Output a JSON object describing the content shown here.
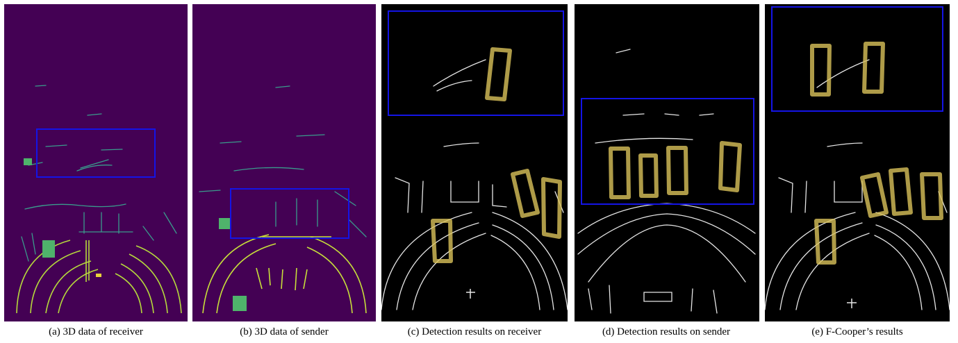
{
  "figure": {
    "panels": [
      {
        "id": "a",
        "caption": "(a) 3D data of receiver",
        "style": "viridis"
      },
      {
        "id": "b",
        "caption": "(b) 3D data of sender",
        "style": "viridis"
      },
      {
        "id": "c",
        "caption": "(c) Detection results on receiver",
        "style": "detection"
      },
      {
        "id": "d",
        "caption": "(d) Detection results on sender",
        "style": "detection"
      },
      {
        "id": "e",
        "caption": "(e) F-Cooper’s results",
        "style": "detection"
      }
    ],
    "colors": {
      "viridis_background": "#440154",
      "lidar_points_teal": "#3a9c8c",
      "lidar_points_yellow": "#c8e03a",
      "detection_background": "#000000",
      "lidar_points_white": "#e6e6e6",
      "bounding_box": "#d9c25a",
      "highlight_box": "#1414e6"
    }
  }
}
